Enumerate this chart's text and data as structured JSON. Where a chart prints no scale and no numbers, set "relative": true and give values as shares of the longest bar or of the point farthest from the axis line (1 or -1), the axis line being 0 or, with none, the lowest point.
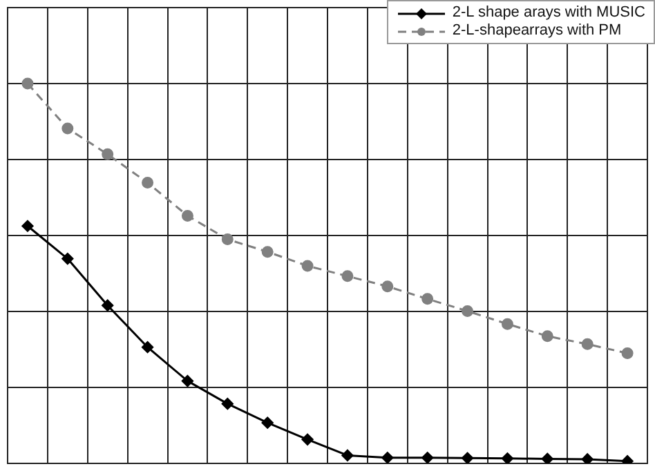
{
  "chart_data": {
    "type": "line",
    "relative": true,
    "grid": true,
    "legend": "top right",
    "tick_labels": false,
    "categories": [
      null,
      null,
      null,
      null,
      null,
      null,
      null,
      null,
      null,
      null,
      null,
      null,
      null,
      null,
      null,
      null
    ],
    "series": [
      {
        "name": "2-L shape arays with MUSIC",
        "color": "#000000",
        "marker": "diamond",
        "line_style": "solid",
        "values": [
          0.625,
          0.539,
          0.416,
          0.306,
          0.217,
          0.157,
          0.107,
          0.063,
          0.021,
          0.015,
          0.015,
          0.014,
          0.013,
          0.012,
          0.011,
          0.006
        ]
      },
      {
        "name": "2-L-shapearrays with PM",
        "color": "#808080",
        "marker": "circle",
        "line_style": "dashed",
        "values": [
          1.0,
          0.882,
          0.814,
          0.739,
          0.652,
          0.59,
          0.557,
          0.52,
          0.493,
          0.466,
          0.433,
          0.401,
          0.367,
          0.335,
          0.314,
          0.29
        ]
      }
    ]
  }
}
